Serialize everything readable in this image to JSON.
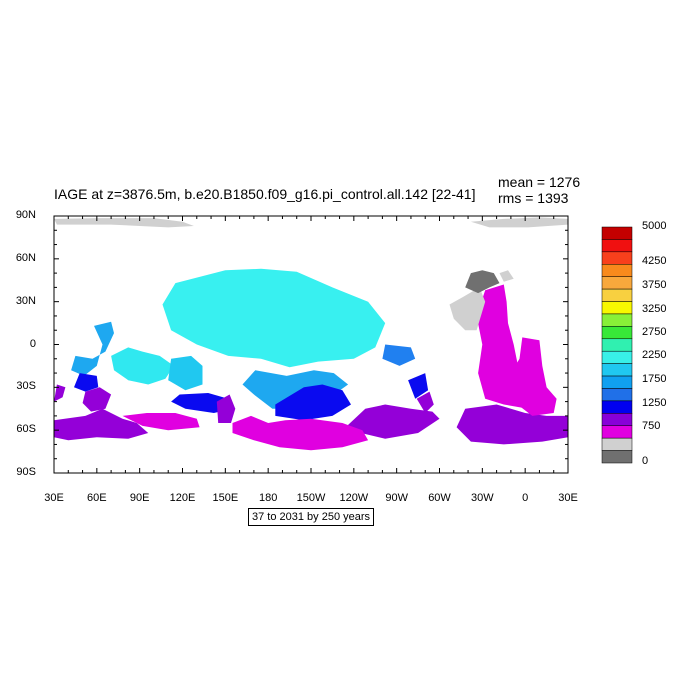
{
  "title": "IAGE at z=3876.5m, b.e20.B1850.f09_g16.pi_control.all.142 [22-41]",
  "stats": {
    "mean": "mean = 1276",
    "rms": "rms = 1393"
  },
  "footer": "37 to 2031 by 250 years",
  "axes": {
    "lat_labels": [
      "90N",
      "60N",
      "30N",
      "0",
      "30S",
      "60S",
      "90S"
    ],
    "lat_values": [
      90,
      60,
      30,
      0,
      -30,
      -60,
      -90
    ],
    "lon_labels": [
      "30E",
      "60E",
      "90E",
      "120E",
      "150E",
      "180",
      "150W",
      "120W",
      "90W",
      "60W",
      "30W",
      "0",
      "30E"
    ],
    "lon_values": [
      30,
      60,
      90,
      120,
      150,
      180,
      210,
      240,
      270,
      300,
      330,
      360,
      390
    ]
  },
  "colorbar": {
    "labels": [
      "5000",
      "4250",
      "3750",
      "3250",
      "2750",
      "2250",
      "1750",
      "1250",
      "750",
      "0"
    ],
    "colors": [
      "#c40000",
      "#f01010",
      "#f8401c",
      "#f88a1c",
      "#f8a83c",
      "#f8d040",
      "#f8f800",
      "#88f038",
      "#38e838",
      "#30f0b0",
      "#38f0e8",
      "#20c8f0",
      "#10a0f0",
      "#2070e8",
      "#0000f0",
      "#8800d8",
      "#e000e0",
      "#d0d0d0",
      "#707070"
    ]
  },
  "regions": [
    {
      "c": "#38f0f0",
      "pts": [
        [
          115,
          43
        ],
        [
          150,
          52
        ],
        [
          175,
          53
        ],
        [
          200,
          51
        ],
        [
          225,
          40
        ],
        [
          250,
          30
        ],
        [
          262,
          15
        ],
        [
          255,
          -2
        ],
        [
          240,
          -10
        ],
        [
          215,
          -12
        ],
        [
          195,
          -16
        ],
        [
          175,
          -10
        ],
        [
          152,
          -8
        ],
        [
          130,
          0
        ],
        [
          112,
          10
        ],
        [
          106,
          28
        ]
      ]
    },
    {
      "c": "#30e8f0",
      "pts": [
        [
          70,
          -8
        ],
        [
          82,
          -2
        ],
        [
          92,
          -5
        ],
        [
          104,
          -8
        ],
        [
          114,
          -15
        ],
        [
          108,
          -24
        ],
        [
          96,
          -28
        ],
        [
          82,
          -25
        ],
        [
          72,
          -18
        ]
      ]
    },
    {
      "c": "#20c8f0",
      "pts": [
        [
          112,
          -10
        ],
        [
          126,
          -8
        ],
        [
          134,
          -15
        ],
        [
          134,
          -28
        ],
        [
          122,
          -32
        ],
        [
          110,
          -25
        ]
      ]
    },
    {
      "c": "#1ea8f0",
      "pts": [
        [
          58,
          13
        ],
        [
          70,
          16
        ],
        [
          72,
          8
        ],
        [
          66,
          -5
        ],
        [
          57,
          -10
        ],
        [
          45,
          -8
        ],
        [
          42,
          -18
        ],
        [
          51,
          -22
        ],
        [
          60,
          -15
        ],
        [
          64,
          0
        ]
      ]
    },
    {
      "c": "#1ea8f0",
      "pts": [
        [
          171,
          -18
        ],
        [
          193,
          -22
        ],
        [
          212,
          -18
        ],
        [
          226,
          -20
        ],
        [
          236,
          -28
        ],
        [
          222,
          -38
        ],
        [
          200,
          -45
        ],
        [
          183,
          -45
        ],
        [
          170,
          -35
        ],
        [
          162,
          -28
        ]
      ]
    },
    {
      "c": "#2080f0",
      "pts": [
        [
          262,
          0
        ],
        [
          280,
          -2
        ],
        [
          283,
          -10
        ],
        [
          272,
          -15
        ],
        [
          260,
          -10
        ]
      ]
    },
    {
      "c": "#0a0af0",
      "pts": [
        [
          118,
          -35
        ],
        [
          138,
          -34
        ],
        [
          152,
          -38
        ],
        [
          155,
          -45
        ],
        [
          142,
          -48
        ],
        [
          122,
          -45
        ],
        [
          112,
          -40
        ]
      ]
    },
    {
      "c": "#0a0af0",
      "pts": [
        [
          185,
          -42
        ],
        [
          205,
          -30
        ],
        [
          218,
          -28
        ],
        [
          232,
          -32
        ],
        [
          238,
          -42
        ],
        [
          225,
          -50
        ],
        [
          205,
          -53
        ],
        [
          185,
          -50
        ]
      ]
    },
    {
      "c": "#0a0af0",
      "pts": [
        [
          48,
          -20
        ],
        [
          60,
          -22
        ],
        [
          61,
          -30
        ],
        [
          52,
          -33
        ],
        [
          44,
          -30
        ]
      ]
    },
    {
      "c": "#0a0af0",
      "pts": [
        [
          278,
          -25
        ],
        [
          290,
          -20
        ],
        [
          292,
          -32
        ],
        [
          283,
          -38
        ]
      ]
    },
    {
      "c": "#9400d8",
      "pts": [
        [
          30,
          -53
        ],
        [
          52,
          -50
        ],
        [
          64,
          -45
        ],
        [
          78,
          -52
        ],
        [
          88,
          -55
        ],
        [
          96,
          -62
        ],
        [
          82,
          -66
        ],
        [
          60,
          -65
        ],
        [
          40,
          -67
        ],
        [
          30,
          -65
        ]
      ]
    },
    {
      "c": "#9400d8",
      "pts": [
        [
          52,
          -33
        ],
        [
          62,
          -30
        ],
        [
          70,
          -35
        ],
        [
          66,
          -45
        ],
        [
          56,
          -47
        ],
        [
          50,
          -41
        ]
      ]
    },
    {
      "c": "#9400d8",
      "pts": [
        [
          144,
          -40
        ],
        [
          153,
          -35
        ],
        [
          157,
          -45
        ],
        [
          154,
          -55
        ],
        [
          145,
          -55
        ]
      ]
    },
    {
      "c": "#9400d8",
      "pts": [
        [
          248,
          -45
        ],
        [
          262,
          -42
        ],
        [
          280,
          -45
        ],
        [
          295,
          -47
        ],
        [
          300,
          -52
        ],
        [
          285,
          -62
        ],
        [
          262,
          -66
        ],
        [
          245,
          -62
        ],
        [
          232,
          -60
        ]
      ]
    },
    {
      "c": "#9400d8",
      "pts": [
        [
          318,
          -45
        ],
        [
          340,
          -42
        ],
        [
          360,
          -48
        ],
        [
          375,
          -50
        ],
        [
          390,
          -50
        ],
        [
          390,
          -65
        ],
        [
          372,
          -68
        ],
        [
          345,
          -70
        ],
        [
          322,
          -68
        ],
        [
          312,
          -58
        ]
      ]
    },
    {
      "c": "#9400d8",
      "pts": [
        [
          32,
          -28
        ],
        [
          38,
          -30
        ],
        [
          36,
          -37
        ],
        [
          30,
          -40
        ]
      ]
    },
    {
      "c": "#9400d8",
      "pts": [
        [
          284,
          -38
        ],
        [
          293,
          -33
        ],
        [
          296,
          -42
        ],
        [
          290,
          -48
        ]
      ]
    },
    {
      "c": "#e000e0",
      "pts": [
        [
          332,
          38
        ],
        [
          345,
          42
        ],
        [
          347,
          30
        ],
        [
          348,
          15
        ],
        [
          352,
          0
        ],
        [
          355,
          -15
        ],
        [
          365,
          -20
        ],
        [
          370,
          -35
        ],
        [
          362,
          -45
        ],
        [
          345,
          -42
        ],
        [
          332,
          -38
        ],
        [
          327,
          -20
        ],
        [
          330,
          0
        ],
        [
          326,
          20
        ]
      ]
    },
    {
      "c": "#e000e0",
      "pts": [
        [
          358,
          5
        ],
        [
          370,
          3
        ],
        [
          372,
          -15
        ],
        [
          375,
          -30
        ],
        [
          382,
          -38
        ],
        [
          380,
          -48
        ],
        [
          365,
          -50
        ],
        [
          352,
          -40
        ],
        [
          350,
          -20
        ],
        [
          356,
          -10
        ]
      ]
    },
    {
      "c": "#e000e0",
      "pts": [
        [
          78,
          -50
        ],
        [
          95,
          -48
        ],
        [
          115,
          -48
        ],
        [
          130,
          -52
        ],
        [
          132,
          -58
        ],
        [
          110,
          -60
        ],
        [
          92,
          -57
        ]
      ]
    },
    {
      "c": "#e000e0",
      "pts": [
        [
          155,
          -55
        ],
        [
          168,
          -50
        ],
        [
          180,
          -55
        ],
        [
          192,
          -53
        ],
        [
          210,
          -52
        ],
        [
          232,
          -55
        ],
        [
          246,
          -60
        ],
        [
          250,
          -67
        ],
        [
          232,
          -72
        ],
        [
          210,
          -74
        ],
        [
          188,
          -72
        ],
        [
          170,
          -67
        ],
        [
          155,
          -62
        ]
      ]
    },
    {
      "c": "#d0d0d0",
      "pts": [
        [
          316,
          33
        ],
        [
          328,
          40
        ],
        [
          332,
          30
        ],
        [
          326,
          10
        ],
        [
          318,
          10
        ],
        [
          310,
          18
        ],
        [
          307,
          28
        ]
      ]
    },
    {
      "c": "#707070",
      "pts": [
        [
          318,
          40
        ],
        [
          322,
          50
        ],
        [
          330,
          52
        ],
        [
          338,
          50
        ],
        [
          342,
          43
        ],
        [
          335,
          40
        ],
        [
          327,
          36
        ]
      ]
    },
    {
      "c": "#d0d0d0",
      "pts": [
        [
          342,
          50
        ],
        [
          348,
          52
        ],
        [
          352,
          46
        ],
        [
          345,
          44
        ]
      ]
    },
    {
      "c": "#d0d0d0",
      "pts": [
        [
          30,
          88
        ],
        [
          60,
          88.5
        ],
        [
          100,
          88.5
        ],
        [
          120,
          86
        ],
        [
          128,
          83
        ],
        [
          110,
          82
        ],
        [
          70,
          84
        ],
        [
          32,
          84
        ]
      ]
    },
    {
      "c": "#d0d0d0",
      "pts": [
        [
          322,
          86
        ],
        [
          345,
          88
        ],
        [
          370,
          89
        ],
        [
          390,
          88
        ],
        [
          390,
          84
        ],
        [
          362,
          82
        ],
        [
          335,
          82
        ]
      ]
    }
  ]
}
